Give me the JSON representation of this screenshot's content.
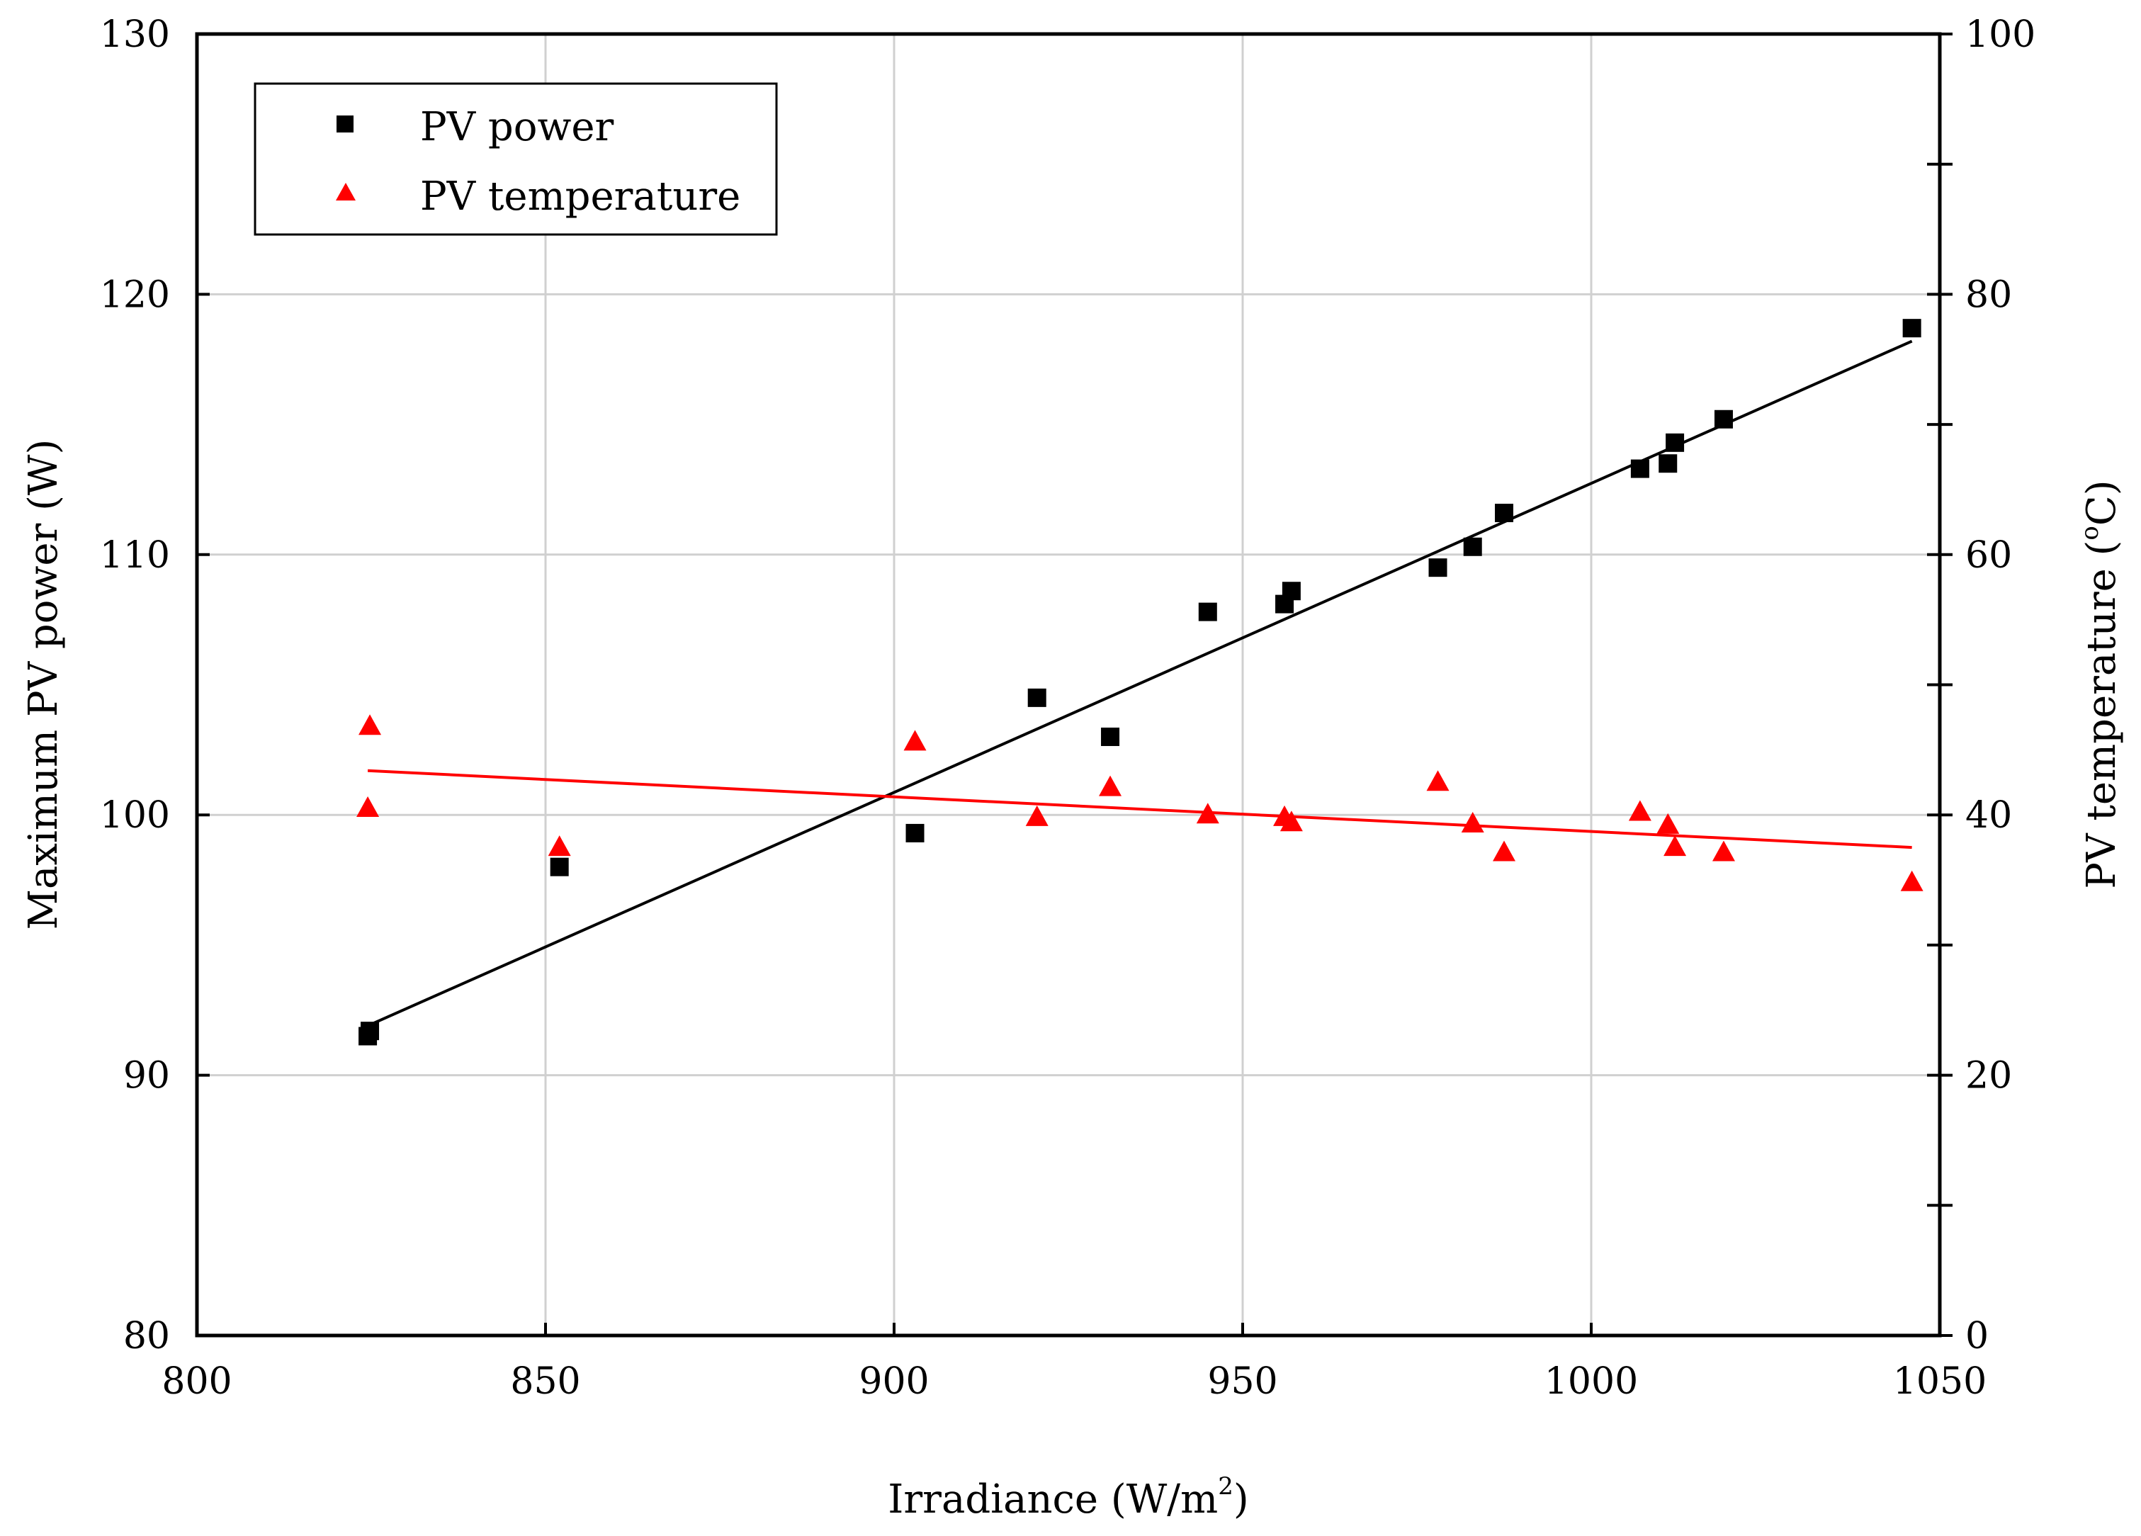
{
  "chart_data": {
    "type": "scatter",
    "title": "",
    "xlabel": "Irradiance (W/m",
    "xlabel_sup": "2",
    "xlabel_tail": ")",
    "ylabel": "Maximum PV power (W)",
    "y2label": "PV temperature (",
    "y2label_sup": "o",
    "y2label_tail": "C)",
    "xlim": [
      800,
      1050
    ],
    "ylim": [
      80,
      130
    ],
    "y2lim": [
      0,
      100
    ],
    "x_ticks": [
      800,
      850,
      900,
      950,
      1000,
      1050
    ],
    "y_ticks": [
      80,
      90,
      100,
      110,
      120,
      130
    ],
    "y2_ticks": [
      0,
      20,
      40,
      60,
      80,
      100
    ],
    "grid": true,
    "legend_position": "top-left",
    "colors": {
      "power": "#000000",
      "temperature": "#ff0000",
      "grid": "#d0d0d0"
    },
    "series": [
      {
        "name": "PV power",
        "axis": "left",
        "marker": "square",
        "x": [
          824.5,
          824.8,
          852,
          903,
          920.5,
          931,
          945,
          956,
          957,
          978,
          983,
          987.5,
          1007,
          1011,
          1012,
          1019,
          1046
        ],
        "y": [
          91.5,
          91.7,
          98.0,
          99.3,
          104.5,
          103.0,
          107.8,
          108.1,
          108.6,
          109.5,
          110.3,
          111.6,
          113.3,
          113.5,
          114.3,
          115.2,
          118.7
        ]
      },
      {
        "name": "PV temperature",
        "axis": "right",
        "marker": "triangle",
        "x": [
          824.5,
          824.8,
          852,
          903,
          920.5,
          931,
          945,
          956,
          957,
          978,
          983,
          987.5,
          1007,
          1011,
          1012,
          1019,
          1046
        ],
        "y": [
          40.5,
          46.8,
          37.5,
          45.6,
          39.8,
          42.1,
          40.0,
          39.8,
          39.4,
          42.5,
          39.3,
          37.1,
          40.2,
          39.2,
          37.5,
          37.1,
          34.8
        ]
      }
    ],
    "fits": [
      {
        "name": "PV power fit",
        "axis": "left",
        "x": [
          824.5,
          1046
        ],
        "y": [
          91.9,
          118.2
        ]
      },
      {
        "name": "PV temperature fit",
        "axis": "right",
        "x": [
          824.5,
          1046
        ],
        "y": [
          43.4,
          37.5
        ]
      }
    ]
  }
}
